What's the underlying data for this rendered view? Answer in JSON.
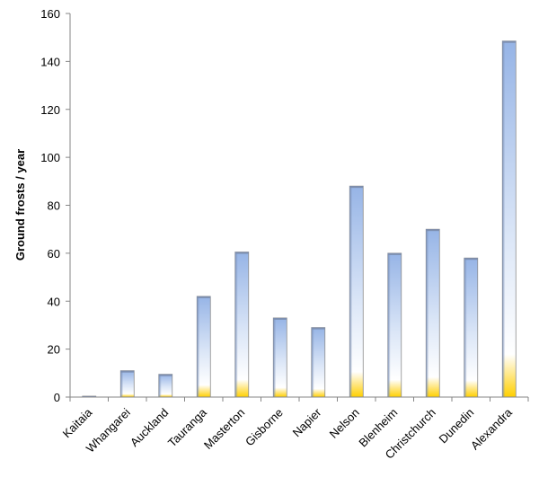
{
  "chart_data": {
    "type": "bar",
    "title": "",
    "xlabel": "",
    "ylabel": "Ground frosts / year",
    "ylim": [
      0,
      160
    ],
    "yticks": [
      0,
      20,
      40,
      60,
      80,
      100,
      120,
      140,
      160
    ],
    "grid": false,
    "categories": [
      "Kaitaia",
      "Whangarei",
      "Auckland",
      "Tauranga",
      "Masterton",
      "Gisborne",
      "Napier",
      "Nelson",
      "Blenheim",
      "Christchurch",
      "Dunedin",
      "Alexandra"
    ],
    "series": [
      {
        "values": [
          0.2,
          11,
          9.5,
          42,
          60.5,
          33,
          29,
          88,
          60,
          70,
          58,
          148.5
        ]
      }
    ],
    "colors": {
      "bar_top": "#96b4e6",
      "bar_mid": "#ffffff",
      "bar_bottom": "#ffd000",
      "axis": "#868686"
    }
  }
}
